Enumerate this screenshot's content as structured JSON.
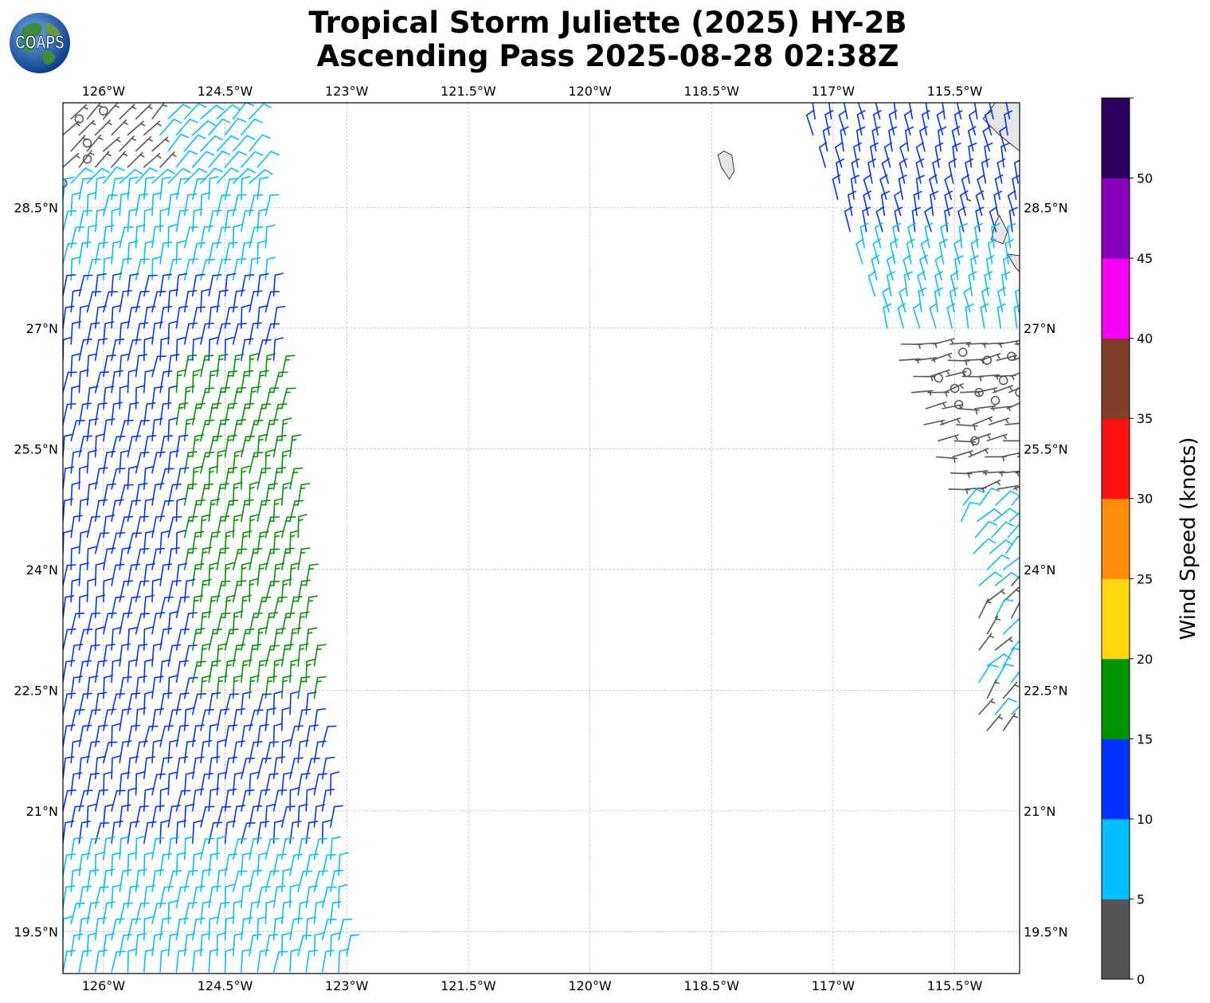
{
  "title": {
    "line1": "Tropical Storm Juliette (2025) HY-2B",
    "line2": "Ascending Pass 2025-08-28 02:38Z"
  },
  "logo": {
    "text": "COAPS",
    "ocean_color": "#1f5fae",
    "land_color": "#3f8a3a"
  },
  "map": {
    "lon_range": [
      -126.5,
      -114.7
    ],
    "lat_range": [
      18.98,
      29.8
    ],
    "lon_ticks": [
      {
        "value": -126,
        "label": "126°W"
      },
      {
        "value": -124.5,
        "label": "124.5°W"
      },
      {
        "value": -123,
        "label": "123°W"
      },
      {
        "value": -121.5,
        "label": "121.5°W"
      },
      {
        "value": -120,
        "label": "120°W"
      },
      {
        "value": -118.5,
        "label": "118.5°W"
      },
      {
        "value": -117,
        "label": "117°W"
      },
      {
        "value": -115.5,
        "label": "115.5°W"
      }
    ],
    "lat_ticks": [
      {
        "value": 28.5,
        "label": "28.5°N"
      },
      {
        "value": 27,
        "label": "27°N"
      },
      {
        "value": 25.5,
        "label": "25.5°N"
      },
      {
        "value": 24,
        "label": "24°N"
      },
      {
        "value": 22.5,
        "label": "22.5°N"
      },
      {
        "value": 21,
        "label": "21°N"
      },
      {
        "value": 19.5,
        "label": "19.5°N"
      }
    ],
    "grid": true,
    "grid_color": "#b3b3b3",
    "land_color": "#e6e6e6",
    "coast_color": "#333333"
  },
  "colorbar": {
    "label": "Wind Speed (knots)",
    "tick_labels": [
      "0",
      "5",
      "10",
      "15",
      "20",
      "25",
      "30",
      "35",
      "40",
      "45",
      "50"
    ],
    "colors": [
      "#555555",
      "#00bfff",
      "#0033ff",
      "#009400",
      "#ffd70f",
      "#ff8c0a",
      "#ff1010",
      "#7f3f28",
      "#f500f5",
      "#8700b9",
      "#2a0060"
    ]
  },
  "chart_data": {
    "type": "scatter",
    "subtype": "wind-barbs",
    "units": "knots",
    "swaths": [
      {
        "lon_left_north": -126.5,
        "lon_right_north": -124.15,
        "lon_left_south": -126.5,
        "lon_right_south": -122.95,
        "lat_top": 29.8,
        "lat_bottom": 19.0,
        "direction": "southwest-to-northeast (SW wind barbs)",
        "speed_zones": [
          {
            "lat_min": 29.0,
            "lat_max": 29.8,
            "speed_left": 3,
            "speed_right": 8
          },
          {
            "lat_min": 27.6,
            "lat_max": 29.0,
            "speed": 8
          },
          {
            "lat_min": 26.5,
            "lat_max": 27.6,
            "speed": 12
          },
          {
            "lat_min": 22.3,
            "lat_max": 26.5,
            "speed_left": 12,
            "speed_right": 17
          },
          {
            "lat_min": 20.5,
            "lat_max": 22.3,
            "speed": 12
          },
          {
            "lat_min": 19.0,
            "lat_max": 20.5,
            "speed": 8
          }
        ]
      },
      {
        "lon_left_north": -117.4,
        "lon_right_north": -114.7,
        "lon_left_south": -115.2,
        "lon_right_south": -114.7,
        "lat_top": 29.8,
        "lat_bottom": 22.0,
        "speed_zones": [
          {
            "lat_min": 28.2,
            "lat_max": 29.8,
            "speed": 12
          },
          {
            "lat_min": 26.9,
            "lat_max": 28.2,
            "speed": 8
          },
          {
            "lat_min": 25.0,
            "lat_max": 26.9,
            "speed": 3
          },
          {
            "lat_min": 24.0,
            "lat_max": 25.0,
            "speed": 8
          },
          {
            "lat_min": 22.0,
            "lat_max": 24.0,
            "speed_mixed": [
              3,
              8
            ]
          }
        ]
      }
    ],
    "calm_points": [
      {
        "lon": -126.0,
        "lat": 29.7
      },
      {
        "lon": -126.3,
        "lat": 29.6
      },
      {
        "lon": -126.2,
        "lat": 29.3
      },
      {
        "lon": -126.2,
        "lat": 29.1
      },
      {
        "lon": -126.5,
        "lat": 28.8
      },
      {
        "lon": -115.4,
        "lat": 26.7
      },
      {
        "lon": -115.1,
        "lat": 26.6
      },
      {
        "lon": -114.8,
        "lat": 26.65
      },
      {
        "lon": -115.35,
        "lat": 26.45
      },
      {
        "lon": -114.9,
        "lat": 26.35
      },
      {
        "lon": -115.7,
        "lat": 26.38
      },
      {
        "lon": -115.2,
        "lat": 26.2
      },
      {
        "lon": -115.5,
        "lat": 26.25
      },
      {
        "lon": -115.45,
        "lat": 26.05
      },
      {
        "lon": -115.0,
        "lat": 26.1
      },
      {
        "lon": -114.7,
        "lat": 26.2
      },
      {
        "lon": -115.25,
        "lat": 25.6
      }
    ]
  }
}
